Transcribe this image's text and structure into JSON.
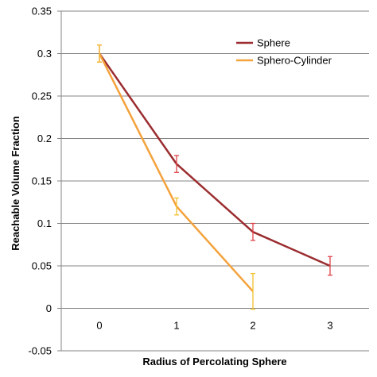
{
  "chart_data": {
    "type": "line",
    "x": [
      0,
      1,
      2,
      3
    ],
    "xlabel": "Radius of Percolating Sphere",
    "ylabel": "Reachable Volume Fraction",
    "x_tick_labels": [
      "0",
      "1",
      "2",
      "3"
    ],
    "y_tick_labels": [
      "0.35",
      "0.3",
      "0.25",
      "0.2",
      "0.15",
      "0.1",
      "0.05",
      "0",
      "-0.05"
    ],
    "y_ticks": [
      0.35,
      0.3,
      0.25,
      0.2,
      0.15,
      0.1,
      0.05,
      0,
      -0.05
    ],
    "ylim": [
      -0.05,
      0.35
    ],
    "grid": "horizontal",
    "legend_position": "top-right",
    "series": [
      {
        "name": "Sphere",
        "color": "#9b2d30",
        "error_color": "#e0444a",
        "x": [
          0,
          1,
          2,
          3
        ],
        "values": [
          0.3,
          0.17,
          0.09,
          0.05
        ],
        "errors": [
          0.01,
          0.01,
          0.01,
          0.011
        ]
      },
      {
        "name": "Sphero-Cylinder",
        "color": "#f4a23c",
        "error_color": "#f2c02e",
        "x": [
          0,
          1,
          2
        ],
        "values": [
          0.3,
          0.12,
          0.02
        ],
        "errors": [
          0.01,
          0.01,
          0.021
        ]
      }
    ]
  }
}
